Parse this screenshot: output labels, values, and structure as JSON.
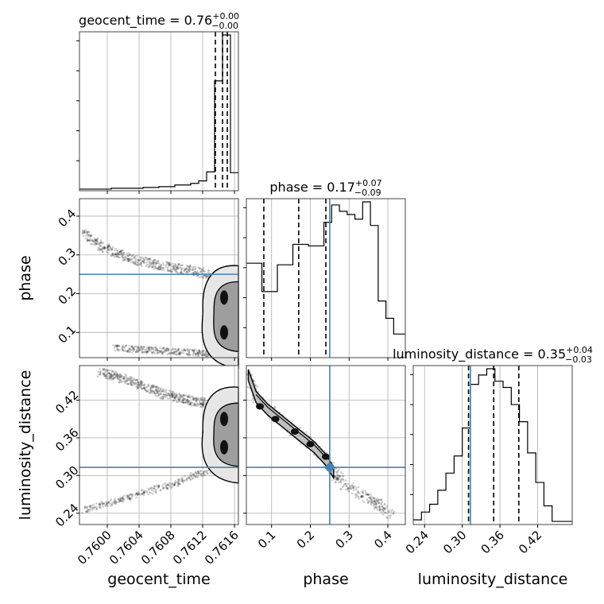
{
  "chart_data": {
    "type": "corner",
    "parameters": [
      "geocent_time",
      "phase",
      "luminosity_distance"
    ],
    "axis_labels": {
      "geocent_time": "geocent_time",
      "phase": "phase",
      "luminosity_distance": "luminosity_distance"
    },
    "ranges": {
      "geocent_time": [
        0.75965,
        0.76165
      ],
      "phase": [
        0.035,
        0.445
      ],
      "luminosity_distance": [
        0.222,
        0.475
      ]
    },
    "ticks": {
      "geocent_time": {
        "values": [
          0.76,
          0.7604,
          0.7608,
          0.7612,
          0.7616
        ],
        "labels": [
          "0.7600",
          "0.7604",
          "0.7608",
          "0.7612",
          "0.7616"
        ]
      },
      "phase": {
        "values": [
          0.1,
          0.2,
          0.3,
          0.4
        ],
        "labels": [
          "0.1",
          "0.2",
          "0.3",
          "0.4"
        ]
      },
      "luminosity_distance": {
        "values": [
          0.24,
          0.3,
          0.36,
          0.42
        ],
        "labels": [
          "0.24",
          "0.30",
          "0.36",
          "0.42"
        ]
      }
    },
    "titles": {
      "geocent_time": {
        "name": "geocent_time",
        "median": "0.76",
        "plus": "+0.00",
        "minus": "−0.00"
      },
      "phase": {
        "name": "phase",
        "median": "0.17",
        "plus": "+0.07",
        "minus": "−0.09"
      },
      "luminosity_distance": {
        "name": "luminosity_distance",
        "median": "0.35",
        "plus": "+0.04",
        "minus": "−0.03"
      }
    },
    "injection": {
      "geocent_time": null,
      "phase": 0.25,
      "luminosity_distance": 0.313
    },
    "quantiles": {
      "geocent_time": [
        0.76136,
        0.76145,
        0.76151
      ],
      "phase": [
        0.08,
        0.17,
        0.24
      ],
      "luminosity_distance": [
        0.31,
        0.35,
        0.39
      ]
    },
    "histograms": {
      "geocent_time": {
        "edges": [
          0.75965,
          0.76005,
          0.76045,
          0.76065,
          0.76085,
          0.76105,
          0.76115,
          0.76125,
          0.76135,
          0.76145,
          0.76155,
          0.76165
        ],
        "counts": [
          0.01,
          0.015,
          0.02,
          0.025,
          0.035,
          0.045,
          0.06,
          0.115,
          0.67,
          0.95,
          0.11
        ]
      },
      "phase": {
        "edges": [
          0.035,
          0.055,
          0.075,
          0.095,
          0.115,
          0.135,
          0.155,
          0.175,
          0.195,
          0.215,
          0.235,
          0.255,
          0.275,
          0.295,
          0.315,
          0.335,
          0.355,
          0.375,
          0.395,
          0.415,
          0.445
        ],
        "counts": [
          0.6,
          0.6,
          0.42,
          0.42,
          0.59,
          0.59,
          0.72,
          0.72,
          0.71,
          0.71,
          0.86,
          0.97,
          0.93,
          0.91,
          0.88,
          0.99,
          0.84,
          0.36,
          0.25,
          0.15
        ]
      },
      "luminosity_distance": {
        "edges": [
          0.222,
          0.235,
          0.248,
          0.261,
          0.274,
          0.287,
          0.3,
          0.313,
          0.326,
          0.339,
          0.352,
          0.365,
          0.378,
          0.391,
          0.404,
          0.417,
          0.43,
          0.443,
          0.475
        ],
        "counts": [
          0.03,
          0.08,
          0.13,
          0.22,
          0.33,
          0.44,
          0.62,
          0.9,
          0.96,
          1.0,
          0.92,
          0.88,
          0.77,
          0.66,
          0.46,
          0.27,
          0.12,
          0.02
        ]
      }
    },
    "scatter": {
      "geocent_time_vs_phase": {
        "upper_tail": {
          "x": [
            0.7597,
            0.7599,
            0.7601,
            0.7603,
            0.7605,
            0.7607,
            0.7609,
            0.7611,
            0.7613
          ],
          "y": [
            0.355,
            0.325,
            0.305,
            0.29,
            0.28,
            0.272,
            0.265,
            0.258,
            0.25
          ]
        },
        "lower_tail": {
          "x": [
            0.7601,
            0.7605,
            0.7609,
            0.7613
          ],
          "y": [
            0.06,
            0.055,
            0.05,
            0.045
          ]
        },
        "blob": {
          "x": [
            0.7615,
            0.7615,
            0.7615
          ],
          "y": [
            0.19,
            0.1,
            0.145
          ]
        }
      },
      "geocent_time_vs_luminosity_distance": {
        "upper_tail": {
          "x": [
            0.7599,
            0.7601,
            0.7603,
            0.7605,
            0.7607,
            0.7609,
            0.7611,
            0.7613
          ],
          "y": [
            0.465,
            0.458,
            0.45,
            0.44,
            0.43,
            0.423,
            0.418,
            0.414
          ]
        },
        "lower_tail": {
          "x": [
            0.7597,
            0.7599,
            0.7601,
            0.7603,
            0.7605,
            0.7607,
            0.7609,
            0.7611,
            0.7613
          ],
          "y": [
            0.245,
            0.252,
            0.26,
            0.266,
            0.274,
            0.281,
            0.29,
            0.3,
            0.308
          ]
        },
        "blob": {
          "x": [
            0.7615,
            0.7615,
            0.7615
          ],
          "y": [
            0.345,
            0.39,
            0.335
          ]
        }
      },
      "phase_vs_luminosity_distance": {
        "band": {
          "x": [
            0.04,
            0.06,
            0.09,
            0.12,
            0.15,
            0.18,
            0.21,
            0.24,
            0.26,
            0.29,
            0.33,
            0.37,
            0.41
          ],
          "y": [
            0.46,
            0.425,
            0.405,
            0.39,
            0.375,
            0.36,
            0.345,
            0.325,
            0.305,
            0.285,
            0.27,
            0.255,
            0.24
          ]
        },
        "dots": {
          "x": [
            0.07,
            0.11,
            0.16,
            0.2,
            0.24
          ],
          "y": [
            0.41,
            0.39,
            0.37,
            0.35,
            0.33
          ]
        }
      }
    }
  }
}
